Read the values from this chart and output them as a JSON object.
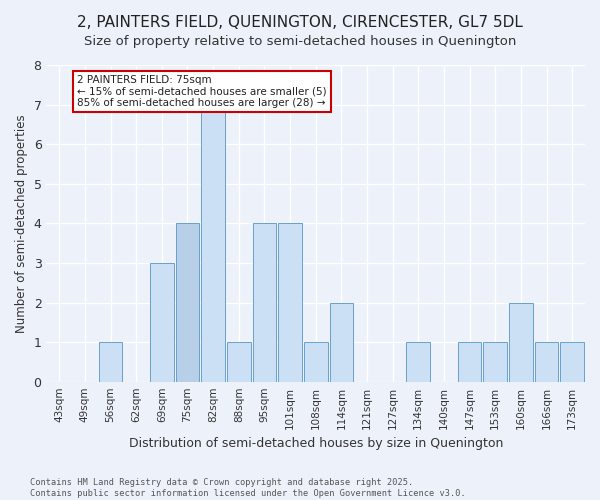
{
  "title": "2, PAINTERS FIELD, QUENINGTON, CIRENCESTER, GL7 5DL",
  "subtitle": "Size of property relative to semi-detached houses in Quenington",
  "xlabel": "Distribution of semi-detached houses by size in Quenington",
  "ylabel": "Number of semi-detached properties",
  "categories": [
    "43sqm",
    "49sqm",
    "56sqm",
    "62sqm",
    "69sqm",
    "75sqm",
    "82sqm",
    "88sqm",
    "95sqm",
    "101sqm",
    "108sqm",
    "114sqm",
    "121sqm",
    "127sqm",
    "134sqm",
    "140sqm",
    "147sqm",
    "153sqm",
    "160sqm",
    "166sqm",
    "173sqm"
  ],
  "values": [
    0,
    0,
    1,
    0,
    3,
    4,
    7,
    1,
    4,
    4,
    1,
    2,
    0,
    0,
    1,
    0,
    1,
    1,
    2,
    1,
    1
  ],
  "highlight_index": 5,
  "highlight_color": "#b8cfe8",
  "bar_color": "#cce0f5",
  "bar_edge_color": "#6aa0cc",
  "annotation_text": "2 PAINTERS FIELD: 75sqm\n← 15% of semi-detached houses are smaller (5)\n85% of semi-detached houses are larger (28) →",
  "annotation_box_color": "#ffffff",
  "annotation_box_edge": "#cc0000",
  "footer": "Contains HM Land Registry data © Crown copyright and database right 2025.\nContains public sector information licensed under the Open Government Licence v3.0.",
  "ylim": [
    0,
    8
  ],
  "yticks": [
    0,
    1,
    2,
    3,
    4,
    5,
    6,
    7,
    8
  ],
  "background_color": "#edf2fa",
  "plot_background": "#edf2fa",
  "title_fontsize": 11,
  "subtitle_fontsize": 9.5
}
